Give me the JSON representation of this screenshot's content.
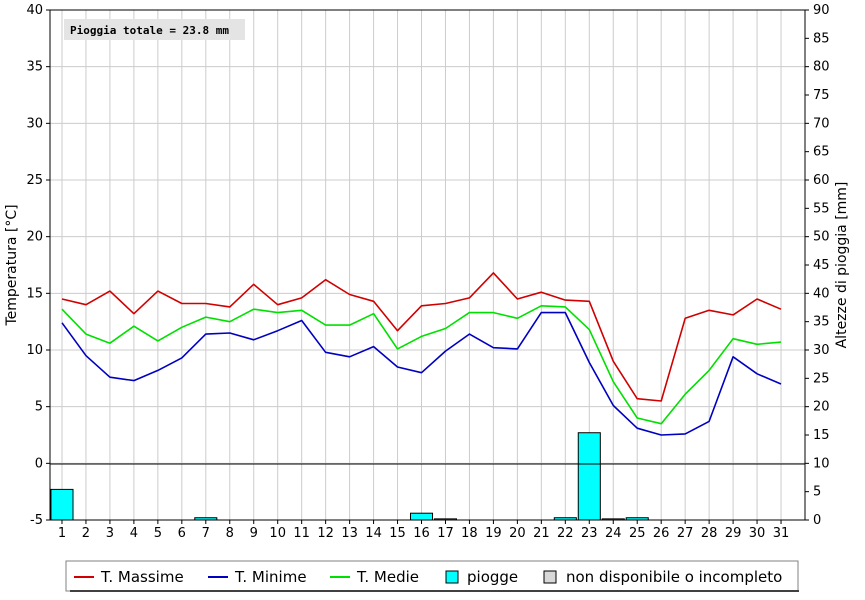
{
  "chart_data": {
    "type": "line",
    "annotation": "Pioggia totale = 23.8 mm",
    "ylabel_left": "Temperatura [°C]",
    "ylabel_right": "Altezze di pioggia [mm]",
    "ylim_left": [
      -5,
      40
    ],
    "ylim_right": [
      0,
      90
    ],
    "yticks_left": [
      "-5",
      "0",
      "5",
      "10",
      "15",
      "20",
      "25",
      "30",
      "35",
      "40"
    ],
    "yticks_right": [
      "0",
      "5",
      "10",
      "15",
      "20",
      "25",
      "30",
      "35",
      "40",
      "45",
      "50",
      "55",
      "60",
      "65",
      "70",
      "75",
      "80",
      "85",
      "90"
    ],
    "x": [
      "1",
      "2",
      "3",
      "4",
      "5",
      "6",
      "7",
      "8",
      "9",
      "10",
      "11",
      "12",
      "13",
      "14",
      "15",
      "16",
      "17",
      "18",
      "19",
      "20",
      "21",
      "22",
      "23",
      "24",
      "25",
      "26",
      "27",
      "28",
      "29",
      "30",
      "31"
    ],
    "grid": true,
    "series": [
      {
        "name": "T. Massime",
        "color": "#d00000",
        "axis": "left",
        "values": [
          14.5,
          14.0,
          15.2,
          13.2,
          15.2,
          14.1,
          14.1,
          13.8,
          15.8,
          14.0,
          14.6,
          16.2,
          14.9,
          14.3,
          11.7,
          13.9,
          14.1,
          14.6,
          16.8,
          14.5,
          15.1,
          14.4,
          14.3,
          9.0,
          5.7,
          5.5,
          12.8,
          13.5,
          13.1,
          14.5,
          13.6
        ]
      },
      {
        "name": "T. Minime",
        "color": "#0000c0",
        "axis": "left",
        "values": [
          12.4,
          9.5,
          7.6,
          7.3,
          8.2,
          9.3,
          11.4,
          11.5,
          10.9,
          11.7,
          12.6,
          9.8,
          9.4,
          10.3,
          8.5,
          8.0,
          9.9,
          11.4,
          10.2,
          10.1,
          13.3,
          13.3,
          8.9,
          5.1,
          3.1,
          2.5,
          2.6,
          3.7,
          9.4,
          7.9,
          7.0
        ]
      },
      {
        "name": "T. Medie",
        "color": "#00e000",
        "axis": "left",
        "values": [
          13.6,
          11.4,
          10.6,
          12.1,
          10.8,
          12.0,
          12.9,
          12.5,
          13.6,
          13.3,
          13.5,
          12.2,
          12.2,
          13.2,
          10.1,
          11.2,
          11.9,
          13.3,
          13.3,
          12.8,
          13.9,
          13.8,
          11.8,
          7.2,
          4.0,
          3.5,
          6.1,
          8.2,
          11.0,
          10.5,
          10.7
        ]
      },
      {
        "name": "piogge",
        "color": "#00ffff",
        "axis": "right",
        "type": "bar",
        "values": [
          5.4,
          0,
          0,
          0,
          0,
          0,
          0.4,
          0,
          0,
          0,
          0,
          0,
          0,
          0,
          0,
          1.2,
          0.2,
          0,
          0,
          0,
          0,
          0.4,
          15.4,
          0.2,
          0.4,
          0,
          0,
          0,
          0,
          0,
          0
        ]
      }
    ],
    "legend": {
      "placement": "bottom",
      "entries": [
        {
          "label": "T. Massime",
          "kind": "line",
          "color": "#d00000"
        },
        {
          "label": "T. Minime",
          "kind": "line",
          "color": "#0000c0"
        },
        {
          "label": "T. Medie",
          "kind": "line",
          "color": "#00e000"
        },
        {
          "label": "piogge",
          "kind": "box",
          "color": "#00ffff"
        },
        {
          "label": "non disponibile o incompleto",
          "kind": "box",
          "color": "#d8d8d8"
        }
      ]
    }
  }
}
